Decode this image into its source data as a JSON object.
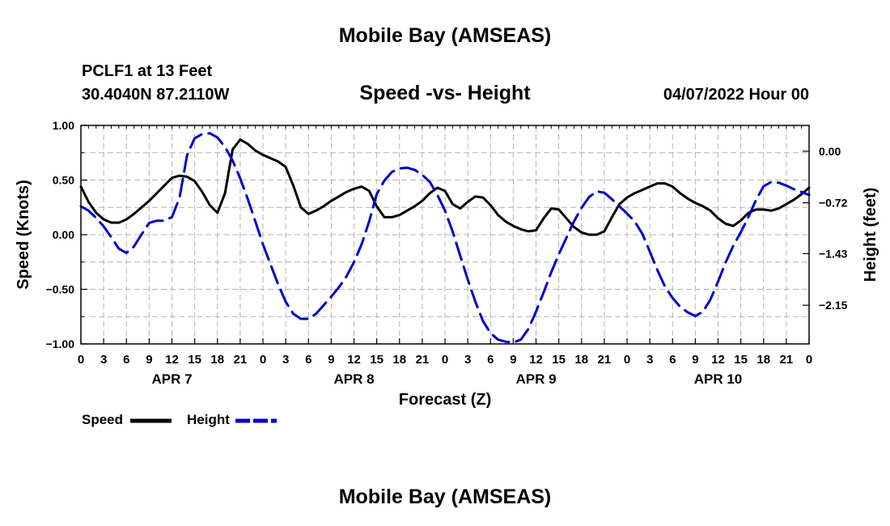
{
  "header": {
    "title": "Mobile Bay (AMSEAS)",
    "station": "PCLF1 at 13 Feet",
    "coords": "30.4040N  87.2110W",
    "subtitle": "Speed -vs- Height",
    "datetime": "04/07/2022 Hour 00",
    "footer_title": "Mobile Bay (AMSEAS)"
  },
  "legend": {
    "speed_label": "Speed",
    "height_label": "Height",
    "placement": "bottom-left"
  },
  "colors": {
    "speed": "#000000",
    "height": "#0000cc",
    "grid": "#b4b4b4"
  },
  "chart_data": {
    "type": "line",
    "xlabel": "Forecast (Z)",
    "ylabel": "Speed (Knots)",
    "y2label": "Height (feet)",
    "xlim": [
      0,
      96
    ],
    "ylim": [
      -1.0,
      1.0
    ],
    "y2lim": [
      -2.69,
      0.36
    ],
    "grid": true,
    "x_ticks": [
      0,
      3,
      6,
      9,
      12,
      15,
      18,
      21,
      24,
      27,
      30,
      33,
      36,
      39,
      42,
      45,
      48,
      51,
      54,
      57,
      60,
      63,
      66,
      69,
      72,
      75,
      78,
      81,
      84,
      87,
      90,
      93,
      96
    ],
    "x_tick_labels": [
      "0",
      "3",
      "6",
      "9",
      "12",
      "15",
      "18",
      "21",
      "0",
      "3",
      "6",
      "9",
      "12",
      "15",
      "18",
      "21",
      "0",
      "3",
      "6",
      "9",
      "12",
      "15",
      "18",
      "21",
      "0",
      "3",
      "6",
      "9",
      "12",
      "15",
      "18",
      "21",
      "0"
    ],
    "x_date_labels": [
      {
        "x": 12,
        "label": "APR 7"
      },
      {
        "x": 36,
        "label": "APR 8"
      },
      {
        "x": 60,
        "label": "APR 9"
      },
      {
        "x": 84,
        "label": "APR 10"
      }
    ],
    "y_ticks": [
      1.0,
      0.5,
      0.0,
      -0.5,
      -1.0
    ],
    "y_tick_labels": [
      "1.00",
      "0.50",
      "0.00",
      "−0.50",
      "−1.00"
    ],
    "y2_ticks": [
      0.0,
      -0.72,
      -1.43,
      -2.15
    ],
    "y2_tick_labels": [
      "0.00",
      "−0.72",
      "−1.43",
      "−2.15"
    ],
    "series": [
      {
        "name": "Speed",
        "axis": "left",
        "style": "solid",
        "x": [
          0,
          1,
          2,
          3,
          4,
          5,
          6,
          7,
          8,
          9,
          10,
          11,
          12,
          13,
          14,
          15,
          16,
          17,
          18,
          19,
          20,
          21,
          22,
          23,
          24,
          25,
          26,
          27,
          28,
          29,
          30,
          31,
          32,
          33,
          34,
          35,
          36,
          37,
          38,
          39,
          40,
          41,
          42,
          43,
          44,
          45,
          46,
          47,
          48,
          49,
          50,
          51,
          52,
          53,
          54,
          55,
          56,
          57,
          58,
          59,
          60,
          61,
          62,
          63,
          64,
          65,
          66,
          67,
          68,
          69,
          70,
          71,
          72,
          73,
          74,
          75,
          76,
          77,
          78,
          79,
          80,
          81,
          82,
          83,
          84,
          85,
          86,
          87,
          88,
          89,
          90,
          91,
          92,
          93,
          94,
          95,
          96
        ],
        "y": [
          0.44,
          0.3,
          0.2,
          0.14,
          0.11,
          0.11,
          0.14,
          0.19,
          0.25,
          0.31,
          0.38,
          0.45,
          0.52,
          0.54,
          0.53,
          0.49,
          0.39,
          0.27,
          0.2,
          0.38,
          0.78,
          0.87,
          0.83,
          0.77,
          0.73,
          0.7,
          0.67,
          0.62,
          0.45,
          0.25,
          0.19,
          0.22,
          0.26,
          0.31,
          0.35,
          0.39,
          0.42,
          0.44,
          0.4,
          0.26,
          0.16,
          0.16,
          0.18,
          0.22,
          0.26,
          0.31,
          0.38,
          0.43,
          0.4,
          0.28,
          0.24,
          0.3,
          0.35,
          0.34,
          0.27,
          0.18,
          0.12,
          0.08,
          0.05,
          0.03,
          0.04,
          0.15,
          0.24,
          0.23,
          0.15,
          0.07,
          0.02,
          0.0,
          0.0,
          0.03,
          0.16,
          0.28,
          0.34,
          0.38,
          0.41,
          0.44,
          0.47,
          0.47,
          0.44,
          0.38,
          0.33,
          0.29,
          0.26,
          0.22,
          0.15,
          0.1,
          0.08,
          0.13,
          0.2,
          0.23,
          0.23,
          0.22,
          0.24,
          0.28,
          0.32,
          0.37,
          0.43
        ]
      },
      {
        "name": "Height",
        "axis": "right",
        "style": "dashed",
        "x": [
          0,
          1,
          2,
          3,
          4,
          5,
          6,
          7,
          8,
          9,
          10,
          11,
          12,
          13,
          14,
          15,
          16,
          17,
          18,
          19,
          20,
          21,
          22,
          23,
          24,
          25,
          26,
          27,
          28,
          29,
          30,
          31,
          32,
          33,
          34,
          35,
          36,
          37,
          38,
          39,
          40,
          41,
          42,
          43,
          44,
          45,
          46,
          47,
          48,
          49,
          50,
          51,
          52,
          53,
          54,
          55,
          56,
          57,
          58,
          59,
          60,
          61,
          62,
          63,
          64,
          65,
          66,
          67,
          68,
          69,
          70,
          71,
          72,
          73,
          74,
          75,
          76,
          77,
          78,
          79,
          80,
          81,
          82,
          83,
          84,
          85,
          86,
          87,
          88,
          89,
          90,
          91,
          92,
          93,
          94,
          95,
          96
        ],
        "y": [
          -0.77,
          -0.83,
          -0.93,
          -1.05,
          -1.2,
          -1.36,
          -1.42,
          -1.33,
          -1.16,
          -1.0,
          -0.97,
          -0.97,
          -0.92,
          -0.65,
          -0.05,
          0.18,
          0.24,
          0.25,
          0.19,
          0.06,
          -0.13,
          -0.38,
          -0.67,
          -0.98,
          -1.3,
          -1.58,
          -1.86,
          -2.1,
          -2.27,
          -2.34,
          -2.34,
          -2.27,
          -2.15,
          -2.03,
          -1.9,
          -1.75,
          -1.55,
          -1.3,
          -0.98,
          -0.6,
          -0.41,
          -0.29,
          -0.24,
          -0.23,
          -0.26,
          -0.33,
          -0.43,
          -0.61,
          -0.83,
          -1.12,
          -1.46,
          -1.79,
          -2.1,
          -2.37,
          -2.54,
          -2.63,
          -2.66,
          -2.67,
          -2.63,
          -2.48,
          -2.24,
          -1.97,
          -1.69,
          -1.44,
          -1.21,
          -0.98,
          -0.79,
          -0.64,
          -0.56,
          -0.58,
          -0.67,
          -0.77,
          -0.87,
          -0.98,
          -1.15,
          -1.4,
          -1.66,
          -1.89,
          -2.05,
          -2.17,
          -2.25,
          -2.3,
          -2.24,
          -2.07,
          -1.82,
          -1.55,
          -1.32,
          -1.13,
          -0.92,
          -0.68,
          -0.49,
          -0.43,
          -0.44,
          -0.48,
          -0.53,
          -0.57,
          -0.61
        ]
      }
    ]
  }
}
